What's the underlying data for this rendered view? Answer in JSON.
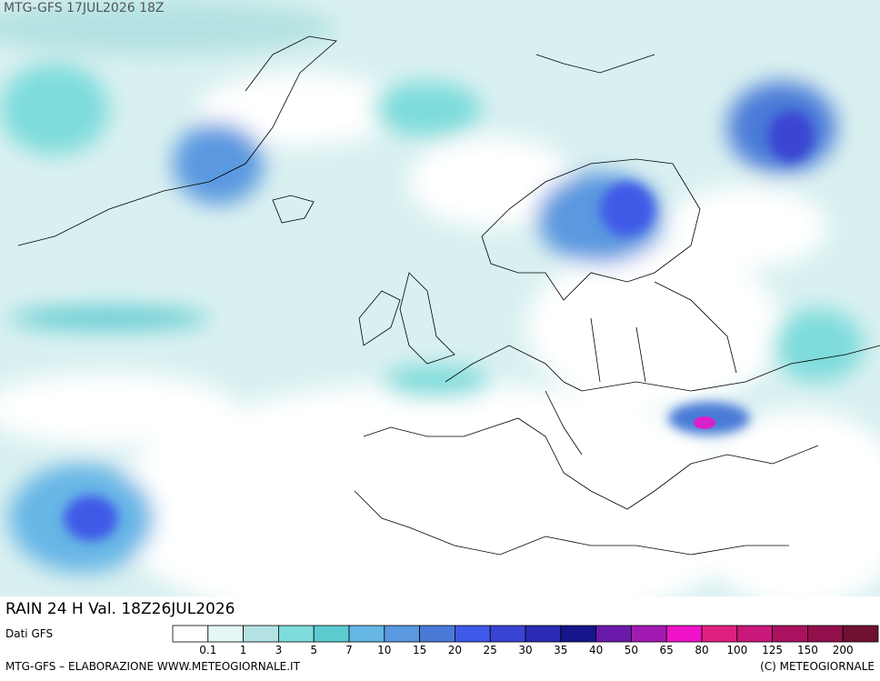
{
  "header": {
    "title": "MTG-GFS 17JUL2026 18Z"
  },
  "map": {
    "caption": "RAIN 24 H Val. 18Z26JUL2026"
  },
  "legend": {
    "source": "Dati GFS",
    "labels": [
      "0.1",
      "1",
      "3",
      "5",
      "7",
      "10",
      "15",
      "20",
      "25",
      "30",
      "35",
      "40",
      "50",
      "65",
      "80",
      "100",
      "125",
      "150",
      "200"
    ],
    "colors": [
      "#ffffff",
      "#e6f5f5",
      "#b4e2e2",
      "#7edcdc",
      "#5ccbd0",
      "#66b6e6",
      "#5a98e0",
      "#4a7ad8",
      "#3f5ae8",
      "#3a44d2",
      "#2a2ab4",
      "#15158c",
      "#6a1aa8",
      "#a21ab2",
      "#f012c8",
      "#e0207e",
      "#c8187a",
      "#aa1260",
      "#92104c",
      "#701032"
    ]
  },
  "footer": {
    "left": "MTG-GFS – ELABORAZIONE WWW.METEOGIORNALE.IT",
    "right": "(C) METEOGIORNALE"
  }
}
